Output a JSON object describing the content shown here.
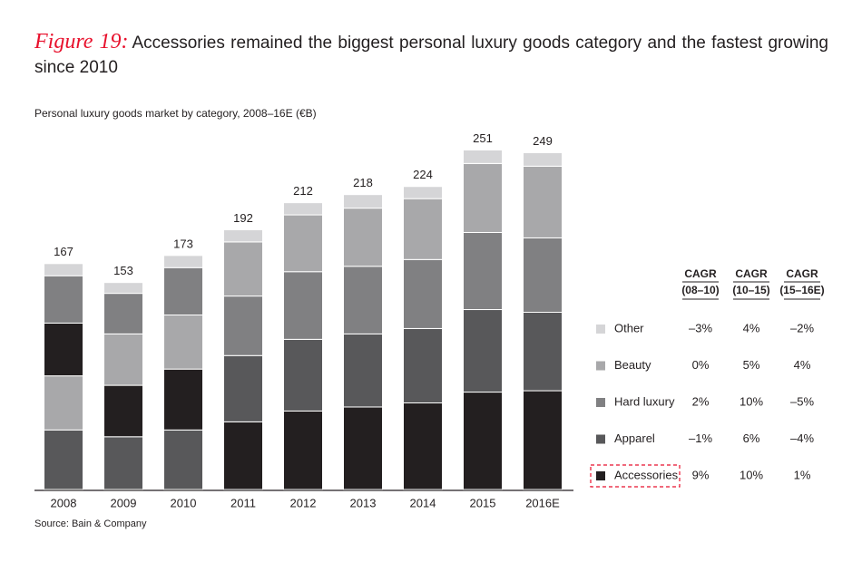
{
  "chart_data": {
    "type": "stacked_bar",
    "title_label": "Figure 19:",
    "title": "Accessories remained the biggest personal luxury goods category and the fastest growing since 2010",
    "subtitle": "Personal luxury goods market by category, 2008–16E (€B)",
    "source": "Source: Bain & Company",
    "categories": [
      "2008",
      "2009",
      "2010",
      "2011",
      "2012",
      "2013",
      "2014",
      "2015",
      "2016E"
    ],
    "totals": [
      167,
      153,
      173,
      192,
      212,
      218,
      224,
      251,
      249
    ],
    "ylim": [
      0,
      260
    ],
    "series": [
      {
        "name": "Accessories",
        "color": "#231f20",
        "values": [
          39,
          38,
          45,
          50,
          58,
          61,
          64,
          72,
          73
        ],
        "cagr": [
          "9%",
          "10%",
          "1%"
        ]
      },
      {
        "name": "Apparel",
        "color": "#58585a",
        "values": [
          44,
          39,
          44,
          49,
          53,
          54,
          55,
          61,
          58
        ],
        "cagr": [
          "–1%",
          "6%",
          "–4%"
        ]
      },
      {
        "name": "Hard luxury",
        "color": "#808082",
        "values": [
          35,
          30,
          35,
          44,
          50,
          50,
          51,
          57,
          55
        ],
        "cagr": [
          "2%",
          "10%",
          "–5%"
        ]
      },
      {
        "name": "Beauty",
        "color": "#a8a8aa",
        "values": [
          40,
          38,
          40,
          40,
          42,
          43,
          45,
          51,
          53
        ],
        "cagr": [
          "0%",
          "5%",
          "4%"
        ]
      },
      {
        "name": "Other",
        "color": "#d5d5d7",
        "values": [
          9,
          8,
          9,
          9,
          9,
          10,
          9,
          10,
          10
        ],
        "cagr": [
          "–3%",
          "4%",
          "–2%"
        ]
      }
    ],
    "cagr_columns": [
      [
        "CAGR",
        "(08–10)"
      ],
      [
        "CAGR",
        "(10–15)"
      ],
      [
        "CAGR",
        "(15–16E)"
      ]
    ]
  }
}
